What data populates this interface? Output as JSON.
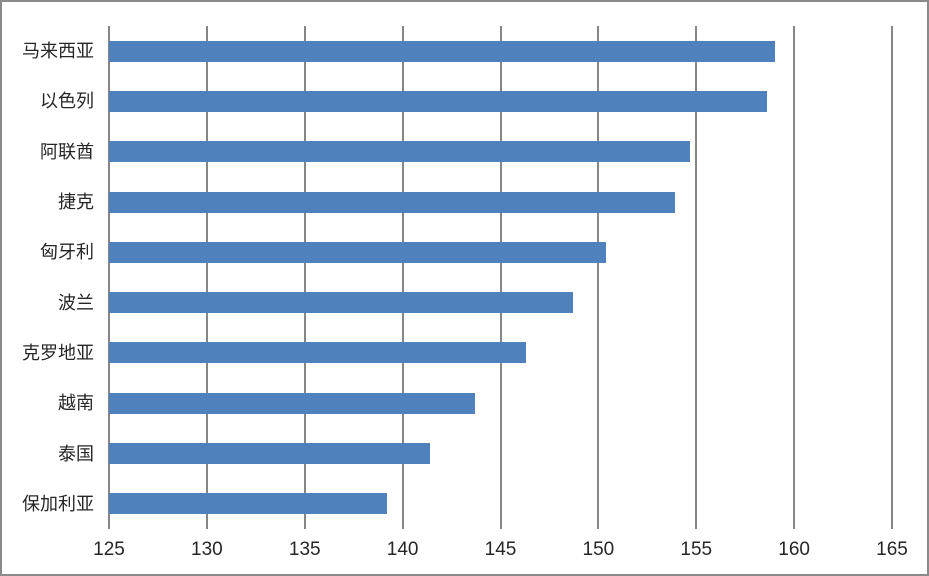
{
  "chart_data": {
    "type": "bar",
    "orientation": "horizontal",
    "title": "",
    "xlabel": "",
    "ylabel": "",
    "categories": [
      "马来西亚",
      "以色列",
      "阿联酋",
      "捷克",
      "匈牙利",
      "波兰",
      "克罗地亚",
      "越南",
      "泰国",
      "保加利亚"
    ],
    "values": [
      159.0,
      158.6,
      154.7,
      153.9,
      150.4,
      148.7,
      146.3,
      143.7,
      141.4,
      139.2
    ],
    "xlim": [
      125,
      165
    ],
    "xticks": [
      125,
      130,
      135,
      140,
      145,
      150,
      155,
      160,
      165
    ],
    "grid": true,
    "legend": false,
    "bar_color": "#4F81BD",
    "gridline_color": "#868686",
    "border_color": "#8A8A8A",
    "text_color": "#262626",
    "background": "#FFFFFF"
  }
}
